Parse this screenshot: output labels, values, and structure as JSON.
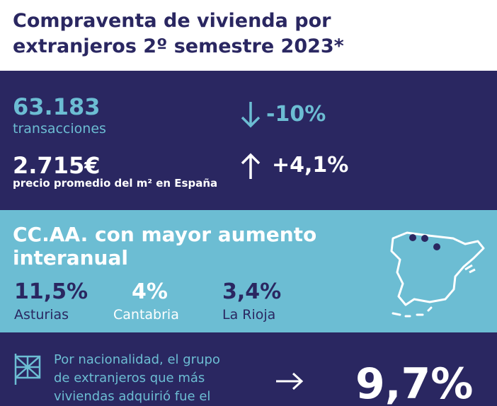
{
  "header": {
    "title_lines": [
      "Compraventa de vivienda por",
      "extranjeros 2º semestre 2023*"
    ]
  },
  "stats": {
    "transactions": {
      "value": "63.183",
      "label": "transacciones",
      "change": "-10%"
    },
    "price": {
      "value": "2.715€",
      "label": "precio promedio del m² en España",
      "change": "+4,1%"
    }
  },
  "regions": {
    "title_lines": [
      "CC.AA. con mayor aumento",
      "interanual"
    ],
    "items": [
      {
        "value": "11,5%",
        "name": "Asturias"
      },
      {
        "value": "4%",
        "name": "Cantabria"
      },
      {
        "value": "3,4%",
        "name": "La Rioja"
      }
    ]
  },
  "nationality": {
    "text_lines": [
      "Por nacionalidad, el grupo",
      "de extranjeros que más",
      "viviendas adquirió fue el"
    ],
    "value": "9,7%"
  }
}
